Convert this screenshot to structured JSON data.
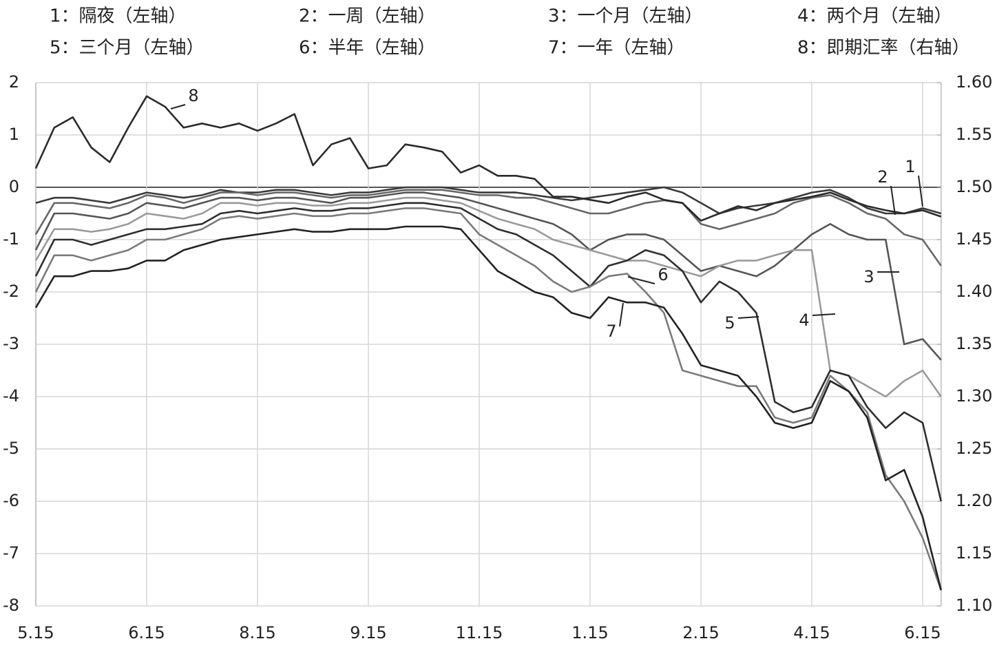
{
  "chart_data": {
    "type": "line",
    "categories": [
      "5.15",
      null,
      null,
      null,
      null,
      null,
      "6.15",
      null,
      null,
      null,
      null,
      null,
      "8.15",
      null,
      null,
      null,
      null,
      null,
      "9.15",
      null,
      null,
      null,
      null,
      null,
      "11.15",
      null,
      null,
      null,
      null,
      null,
      "1.15",
      null,
      null,
      null,
      null,
      null,
      "2.15",
      null,
      null,
      null,
      null,
      null,
      "4.15",
      null,
      null,
      null,
      null,
      null,
      "6.15",
      null
    ],
    "series": [
      {
        "name": "1：隔夜（左轴）",
        "color": "#3a3a3a",
        "values": [
          -0.3,
          -0.2,
          -0.2,
          -0.25,
          -0.3,
          -0.2,
          -0.1,
          -0.15,
          -0.2,
          -0.15,
          -0.05,
          -0.1,
          -0.1,
          -0.05,
          -0.05,
          -0.1,
          -0.15,
          -0.1,
          -0.1,
          -0.05,
          0,
          0,
          0,
          -0.05,
          -0.1,
          -0.1,
          -0.1,
          -0.15,
          -0.2,
          -0.25,
          -0.2,
          -0.15,
          -0.1,
          -0.05,
          0,
          -0.1,
          -0.3,
          -0.5,
          -0.4,
          -0.35,
          -0.3,
          -0.2,
          -0.1,
          -0.05,
          -0.2,
          -0.4,
          -0.5,
          -0.5,
          -0.4,
          -0.5
        ]
      },
      {
        "name": "2：一周（左轴）",
        "color": "#666666",
        "values": [
          -0.9,
          -0.3,
          -0.3,
          -0.35,
          -0.4,
          -0.3,
          -0.15,
          -0.2,
          -0.3,
          -0.2,
          -0.1,
          -0.1,
          -0.15,
          -0.1,
          -0.1,
          -0.15,
          -0.2,
          -0.15,
          -0.15,
          -0.1,
          -0.05,
          -0.05,
          -0.05,
          -0.1,
          -0.15,
          -0.15,
          -0.2,
          -0.2,
          -0.3,
          -0.4,
          -0.5,
          -0.5,
          -0.4,
          -0.3,
          -0.25,
          -0.3,
          -0.7,
          -0.8,
          -0.7,
          -0.6,
          -0.5,
          -0.3,
          -0.2,
          -0.15,
          -0.3,
          -0.5,
          -0.6,
          -0.9,
          -1.0,
          -1.5
        ]
      },
      {
        "name": "3：一个月（左轴）",
        "color": "#555555",
        "values": [
          -1.2,
          -0.5,
          -0.5,
          -0.55,
          -0.6,
          -0.5,
          -0.3,
          -0.35,
          -0.4,
          -0.3,
          -0.2,
          -0.2,
          -0.25,
          -0.2,
          -0.2,
          -0.25,
          -0.3,
          -0.2,
          -0.2,
          -0.15,
          -0.1,
          -0.1,
          -0.15,
          -0.2,
          -0.3,
          -0.4,
          -0.5,
          -0.6,
          -0.7,
          -0.9,
          -1.2,
          -1.0,
          -0.9,
          -0.9,
          -1.0,
          -1.3,
          -1.6,
          -1.5,
          -1.6,
          -1.7,
          -1.5,
          -1.2,
          -0.9,
          -0.7,
          -0.9,
          -1.0,
          -1.0,
          -3.0,
          -2.9,
          -3.3
        ]
      },
      {
        "name": "4：两个月（左轴）",
        "color": "#9a9a9a",
        "values": [
          -1.4,
          -0.8,
          -0.8,
          -0.85,
          -0.8,
          -0.7,
          -0.5,
          -0.55,
          -0.6,
          -0.5,
          -0.3,
          -0.3,
          -0.35,
          -0.3,
          -0.3,
          -0.35,
          -0.35,
          -0.3,
          -0.3,
          -0.25,
          -0.2,
          -0.2,
          -0.25,
          -0.3,
          -0.45,
          -0.6,
          -0.7,
          -0.8,
          -1.0,
          -1.1,
          -1.2,
          -1.3,
          -1.4,
          -1.4,
          -1.5,
          -1.6,
          -1.7,
          -1.5,
          -1.4,
          -1.4,
          -1.3,
          -1.2,
          -1.2,
          -3.5,
          -3.6,
          -3.8,
          -4.0,
          -3.7,
          -3.5,
          -4.0
        ]
      },
      {
        "name": "5：三个月（左轴）",
        "color": "#2e2e2e",
        "values": [
          -1.7,
          -1.0,
          -1.0,
          -1.1,
          -1.0,
          -0.9,
          -0.8,
          -0.8,
          -0.75,
          -0.7,
          -0.5,
          -0.45,
          -0.5,
          -0.45,
          -0.4,
          -0.45,
          -0.45,
          -0.4,
          -0.4,
          -0.35,
          -0.3,
          -0.3,
          -0.35,
          -0.4,
          -0.6,
          -0.8,
          -0.9,
          -1.1,
          -1.3,
          -1.6,
          -1.9,
          -1.5,
          -1.4,
          -1.2,
          -1.3,
          -1.6,
          -2.2,
          -1.8,
          -2.0,
          -2.4,
          -4.1,
          -4.3,
          -4.2,
          -3.5,
          -3.6,
          -4.2,
          -4.6,
          -4.3,
          -4.5,
          -6.0
        ]
      },
      {
        "name": "6：半年（左轴）",
        "color": "#7a7a7a",
        "values": [
          -2.0,
          -1.3,
          -1.3,
          -1.4,
          -1.3,
          -1.2,
          -1.0,
          -1.0,
          -0.9,
          -0.8,
          -0.6,
          -0.55,
          -0.6,
          -0.55,
          -0.5,
          -0.55,
          -0.55,
          -0.5,
          -0.5,
          -0.45,
          -0.4,
          -0.4,
          -0.45,
          -0.5,
          -0.9,
          -1.1,
          -1.3,
          -1.5,
          -1.8,
          -2.0,
          -1.9,
          -1.7,
          -1.65,
          -2.0,
          -2.4,
          -3.5,
          -3.6,
          -3.7,
          -3.8,
          -3.8,
          -4.4,
          -4.5,
          -4.4,
          -3.6,
          -3.9,
          -4.3,
          -5.5,
          -6.0,
          -6.7,
          -7.7
        ]
      },
      {
        "name": "7：一年（左轴）",
        "color": "#222222",
        "values": [
          -2.3,
          -1.7,
          -1.7,
          -1.6,
          -1.6,
          -1.55,
          -1.4,
          -1.4,
          -1.2,
          -1.1,
          -1.0,
          -0.95,
          -0.9,
          -0.85,
          -0.8,
          -0.85,
          -0.85,
          -0.8,
          -0.8,
          -0.8,
          -0.75,
          -0.75,
          -0.75,
          -0.8,
          -1.2,
          -1.6,
          -1.8,
          -2.0,
          -2.1,
          -2.4,
          -2.5,
          -2.1,
          -2.2,
          -2.2,
          -2.3,
          -2.8,
          -3.4,
          -3.5,
          -3.6,
          -4.0,
          -4.5,
          -4.6,
          -4.5,
          -3.7,
          -3.9,
          -4.4,
          -5.6,
          -5.4,
          -6.3,
          -7.7
        ]
      },
      {
        "name": "8：即期汇率（右轴）",
        "color": "#2a2a2a",
        "axis": "y2",
        "values": [
          1.518,
          1.557,
          1.567,
          1.538,
          1.524,
          1.557,
          1.587,
          1.577,
          1.557,
          1.561,
          1.557,
          1.561,
          1.554,
          1.561,
          1.57,
          1.521,
          1.541,
          1.547,
          1.518,
          1.521,
          1.541,
          1.538,
          1.534,
          1.514,
          1.521,
          1.511,
          1.511,
          1.508,
          1.491,
          1.491,
          1.488,
          1.485,
          1.491,
          1.495,
          1.488,
          1.485,
          1.468,
          1.475,
          1.482,
          1.478,
          1.485,
          1.488,
          1.491,
          1.495,
          1.488,
          1.482,
          1.478,
          1.475,
          1.478,
          1.472
        ]
      }
    ],
    "annotations": [
      "8",
      "6",
      "7",
      "5",
      "4",
      "3",
      "2",
      "1"
    ],
    "ylim": [
      -8,
      2
    ],
    "yticks": [
      2,
      1,
      0,
      -1,
      -2,
      -3,
      -4,
      -5,
      -6,
      -7,
      -8
    ],
    "y2lim": [
      1.1,
      1.6
    ],
    "y2ticks": [
      {
        "value": 1.6,
        "label": "1.60"
      },
      1.55,
      {
        "value": 1.5,
        "label": "1.50"
      },
      1.45,
      {
        "value": 1.4,
        "label": "1.40"
      },
      1.35,
      {
        "value": 1.3,
        "label": "1.30"
      },
      1.25,
      {
        "value": 1.2,
        "label": "1.20"
      },
      1.15,
      {
        "value": 1.1,
        "label": "1.10"
      }
    ],
    "grid": true
  }
}
